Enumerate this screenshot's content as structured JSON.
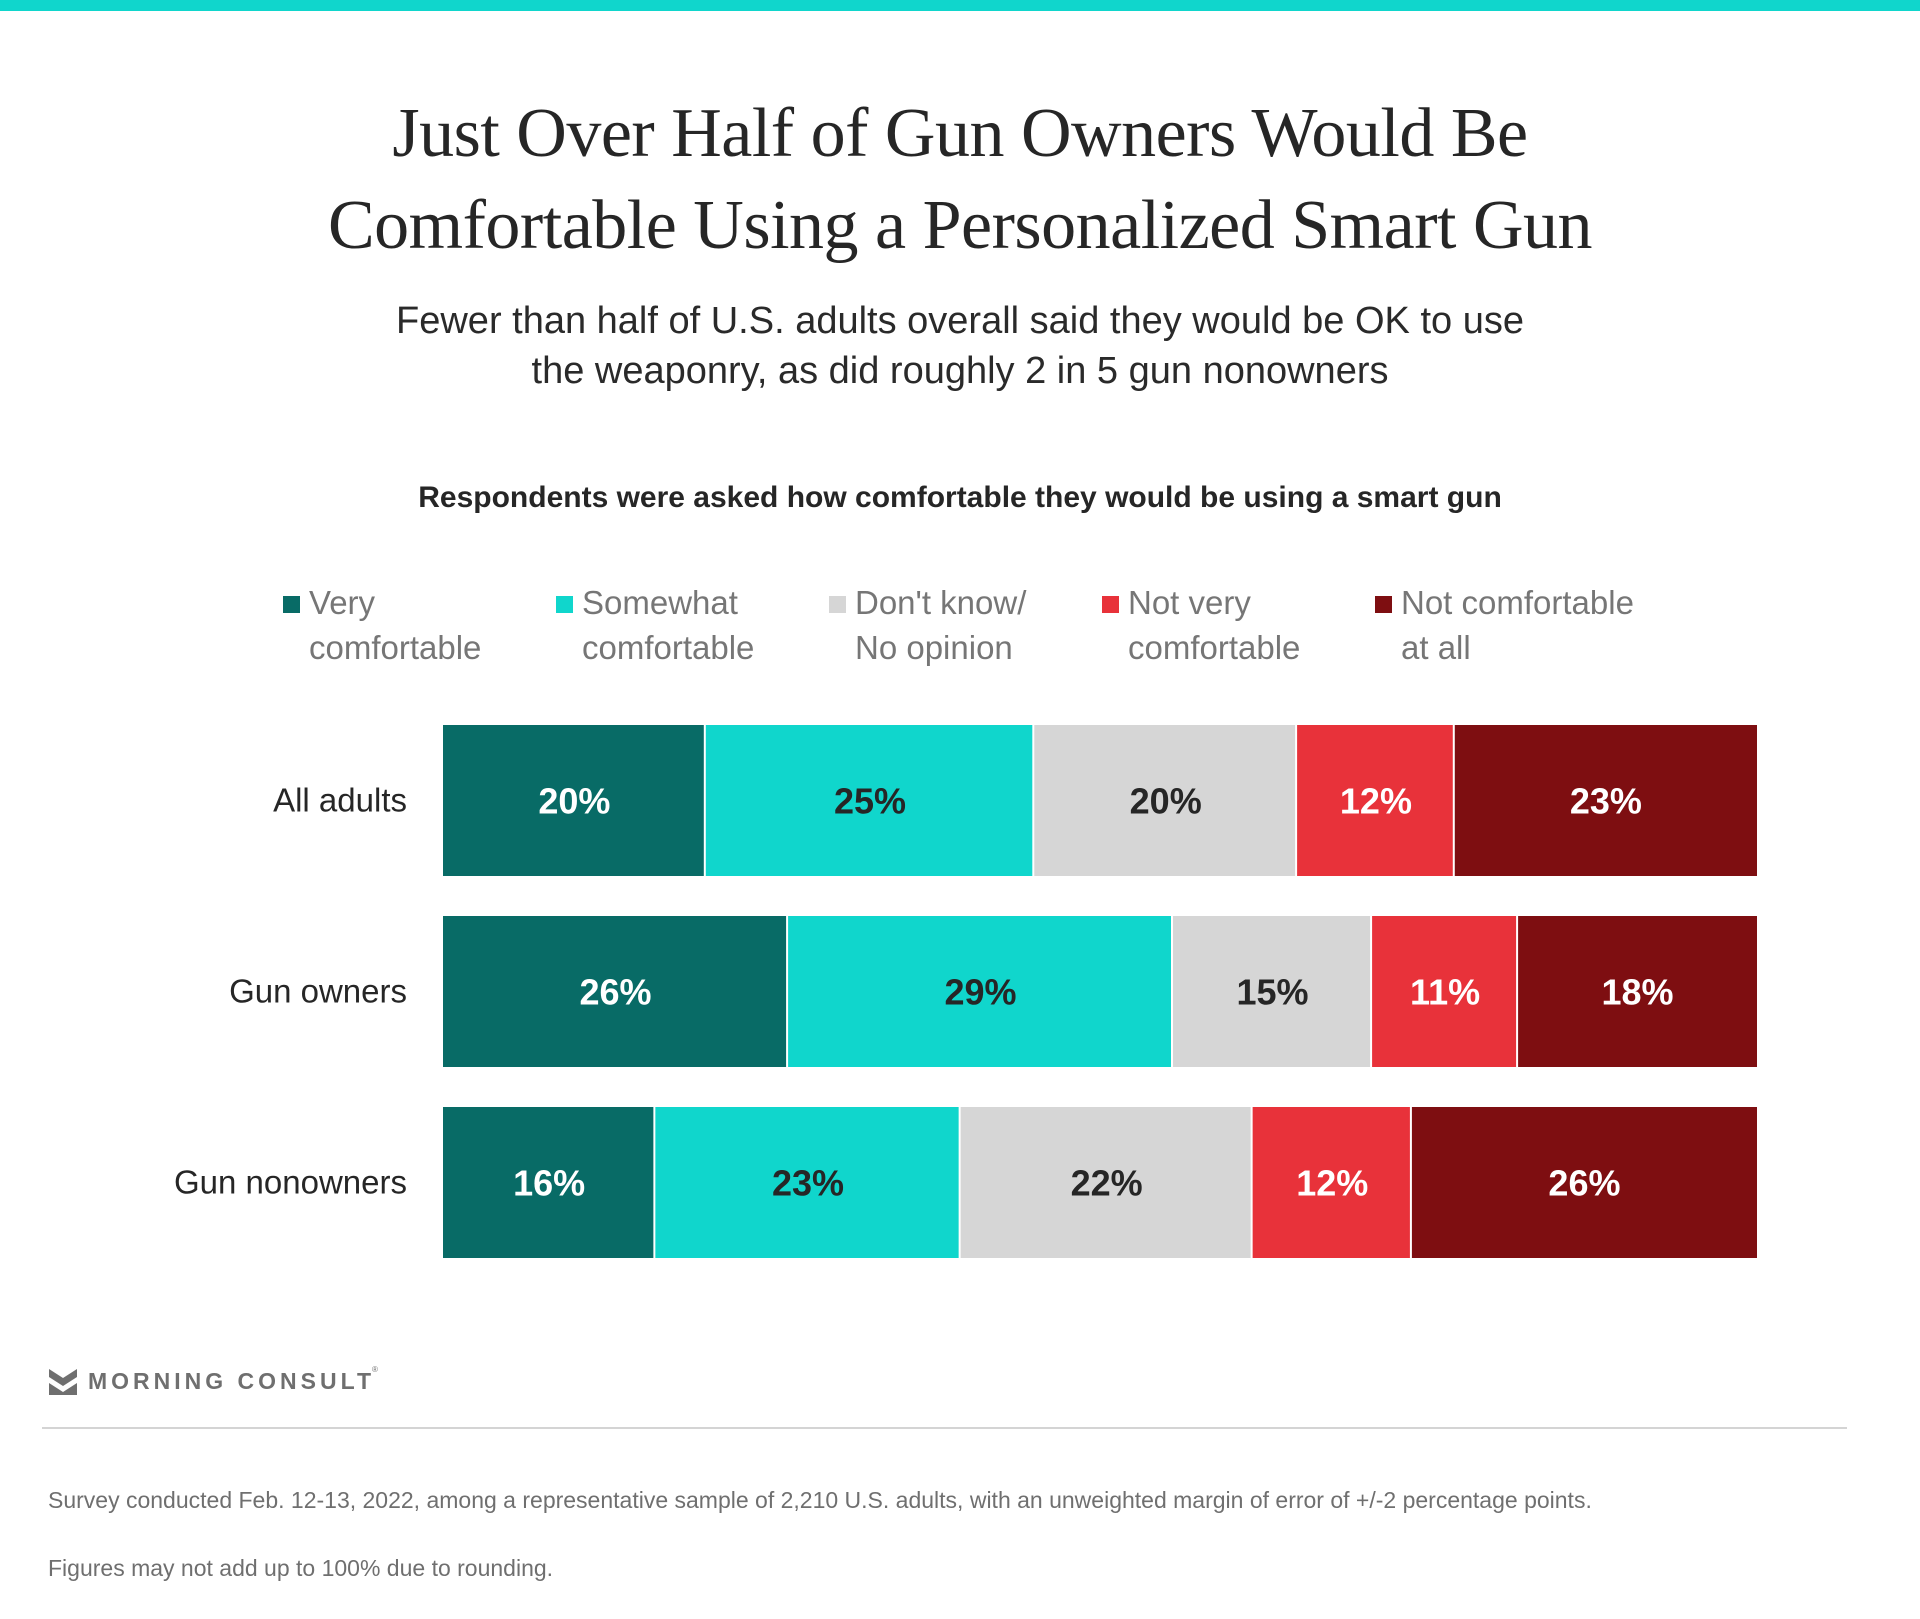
{
  "header": {
    "title_line1": "Just Over Half of Gun Owners Would Be",
    "title_line2": "Comfortable Using a Personalized Smart Gun",
    "subtitle_line1": "Fewer than half of U.S. adults overall said they would be OK to use",
    "subtitle_line2": "the weaponry, as did roughly 2 in 5 gun nonowners"
  },
  "colors": {
    "accent_bar": "#10d6cc",
    "very_comfortable": "#086b66",
    "somewhat_comfortable": "#10d6cc",
    "dont_know": "#d6d6d6",
    "not_very_comfortable": "#e8323a",
    "not_comfortable_at_all": "#7e0e11"
  },
  "chart_data": {
    "type": "bar",
    "orientation": "horizontal-stacked-100",
    "title": "Respondents were asked how comfortable they would be using a smart gun",
    "categories": [
      "All adults",
      "Gun owners",
      "Gun nonowners"
    ],
    "series": [
      {
        "name": "Very comfortable",
        "legend_label": "Very\ncomfortable",
        "color": "#086b66",
        "label_color": "#ffffff",
        "values": [
          20,
          26,
          16
        ]
      },
      {
        "name": "Somewhat comfortable",
        "legend_label": "Somewhat\ncomfortable",
        "color": "#10d6cc",
        "label_color": "#262626",
        "values": [
          25,
          29,
          23
        ]
      },
      {
        "name": "Don't know/No opinion",
        "legend_label": "Don't know/\nNo opinion",
        "color": "#d6d6d6",
        "label_color": "#262626",
        "values": [
          20,
          15,
          22
        ]
      },
      {
        "name": "Not very comfortable",
        "legend_label": "Not very\ncomfortable",
        "color": "#e8323a",
        "label_color": "#ffffff",
        "values": [
          12,
          11,
          12
        ]
      },
      {
        "name": "Not comfortable at all",
        "legend_label": "Not comfortable\nat all",
        "color": "#7e0e11",
        "label_color": "#ffffff",
        "values": [
          23,
          18,
          26
        ]
      }
    ],
    "value_suffix": "%",
    "legend_position": "top",
    "xlabel": "",
    "ylabel": "",
    "grid": false
  },
  "footer": {
    "brand": "MORNING CONSULT",
    "brand_mark": "®",
    "note_line1": "Survey conducted Feb. 12-13, 2022, among a representative sample of 2,210 U.S. adults, with an unweighted margin of error of +/-2 percentage points.",
    "note_line2": "Figures may not add up to 100% due to rounding."
  }
}
